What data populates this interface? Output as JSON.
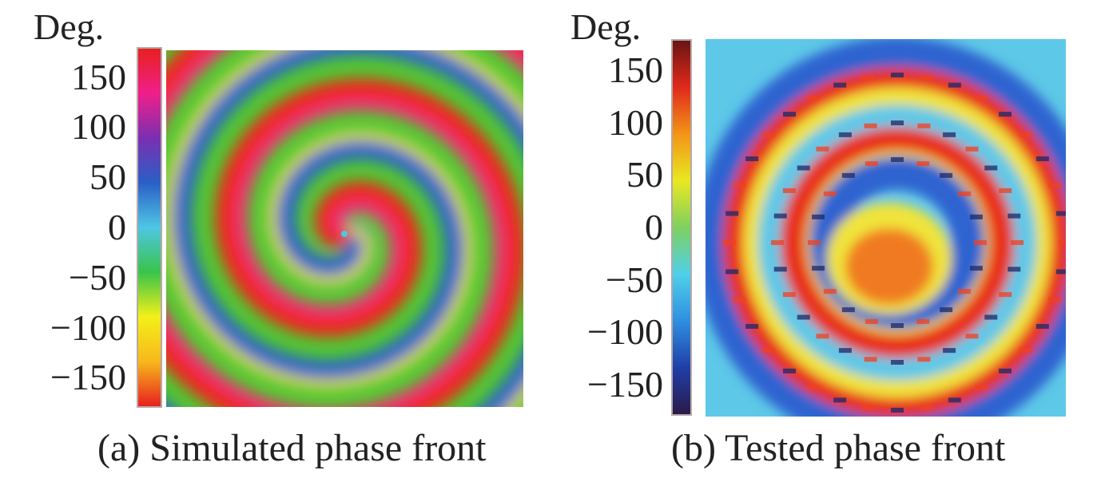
{
  "chart_data": [
    {
      "type": "heatmap",
      "caption": "(a) Simulated phase front",
      "colorbar": {
        "label": "Deg.",
        "ticks": [
          "150",
          "100",
          "50",
          "0",
          "−50",
          "−100",
          "−150"
        ],
        "tick_values": [
          150,
          100,
          50,
          0,
          -50,
          -100,
          -150
        ],
        "range": [
          -180,
          180
        ],
        "colors": [
          "#e8201e",
          "#f7b81c",
          "#f3f01a",
          "#39c44a",
          "#4ec6e4",
          "#2a5fc6",
          "#7b2fb2",
          "#f01f8a",
          "#e8201e"
        ]
      },
      "description_colors": {
        "pink": "#f2327f",
        "green": "#4fc62f",
        "blue": "#2f66c9",
        "red": "#f0251f"
      }
    },
    {
      "type": "heatmap",
      "caption": "(b) Tested phase front",
      "colorbar": {
        "label": "Deg.",
        "ticks": [
          "150",
          "100",
          "50",
          "0",
          "−50",
          "−100",
          "−150"
        ],
        "tick_values": [
          150,
          100,
          50,
          0,
          -50,
          -100,
          -150
        ],
        "range": [
          -180,
          180
        ],
        "colors": [
          "#2a1a4a",
          "#1f3fa8",
          "#2f8fe0",
          "#4fd0e8",
          "#7fd060",
          "#e8e820",
          "#f29418",
          "#e02a1a",
          "#6a1414"
        ]
      },
      "description_colors": {
        "red": "#e8321a",
        "orange": "#f07a20",
        "yellow": "#f0e43a",
        "cyan": "#5ec8e8",
        "blue": "#2e63d0"
      }
    }
  ]
}
